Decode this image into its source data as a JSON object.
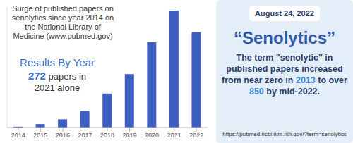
{
  "chart_data": {
    "type": "bar",
    "title": "Surge of published papers on senolytics since year 2014 on the National Library of Medicine (www.pubmed.gov)",
    "annotation": {
      "heading": "Results By Year",
      "highlight": "272",
      "text": "papers in 2021 alone"
    },
    "categories": [
      "2014",
      "2015",
      "2016",
      "2017",
      "2018",
      "2019",
      "2020",
      "2021",
      "2022"
    ],
    "values": [
      2,
      8,
      19,
      39,
      79,
      124,
      198,
      272,
      221
    ],
    "color": "#3e5fc2",
    "ylim": [
      0,
      280
    ],
    "grid": false,
    "tick_labels": "x"
  },
  "panel": {
    "date": "August 24, 2022",
    "heading": "“Senolytics”",
    "body": [
      {
        "text": "The term \"senolytic\" in published papers increased from near zero in "
      },
      {
        "text": "2013",
        "highlight": true
      },
      {
        "text": " to over "
      },
      {
        "text": "850",
        "highlight": true
      },
      {
        "text": " by mid-2022."
      }
    ],
    "url": "https://pubmed.ncbi.nlm.nih.gov/?term=senolytics"
  }
}
